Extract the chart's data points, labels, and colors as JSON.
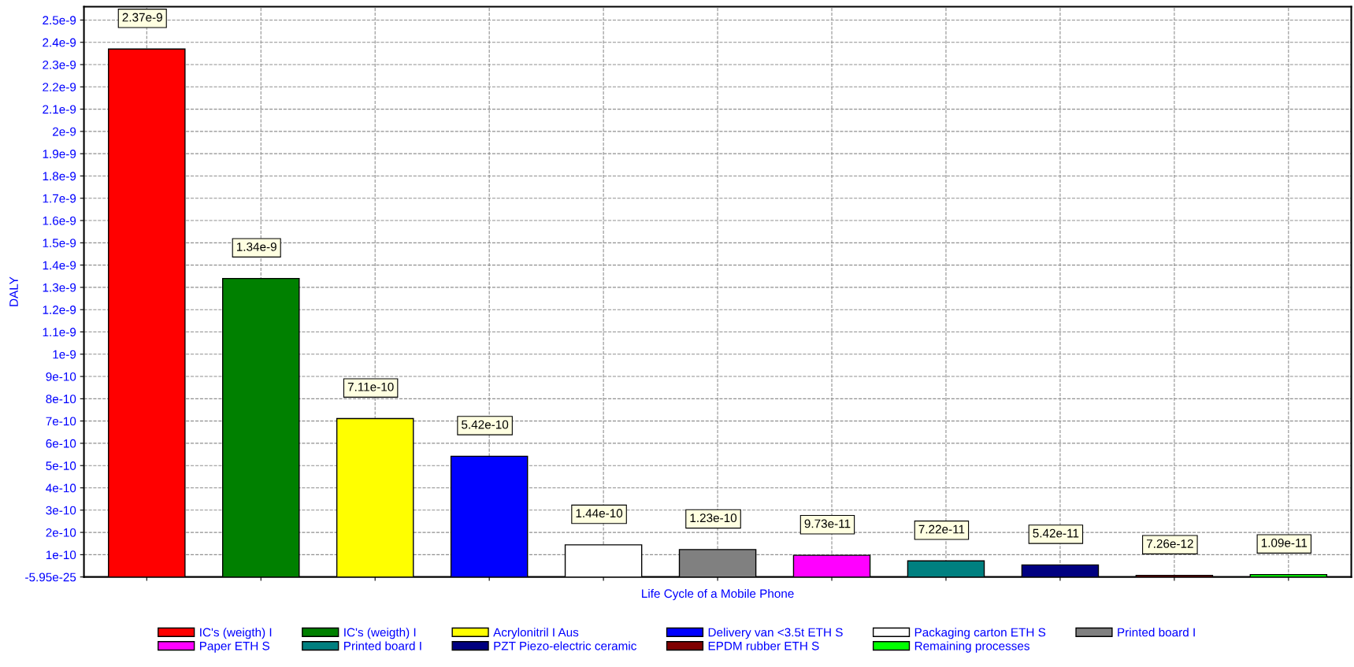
{
  "chart_data": {
    "type": "bar",
    "xlabel": "Life Cycle of a Mobile Phone",
    "ylabel": "DALY",
    "categories": [
      null,
      null,
      null,
      null,
      null,
      null,
      null,
      null,
      null,
      null,
      null
    ],
    "series": [
      {
        "name": "IC's (weigth) I",
        "color": "#ff0000",
        "values": [
          2.37e-09,
          null,
          null,
          null,
          null,
          null,
          null,
          null,
          null,
          null,
          null
        ],
        "value_labels": [
          "2.37e-9",
          null,
          null,
          null,
          null,
          null,
          null,
          null,
          null,
          null,
          null
        ]
      },
      {
        "name": "IC's (weigth) I",
        "color": "#008000",
        "values": [
          null,
          1.34e-09,
          null,
          null,
          null,
          null,
          null,
          null,
          null,
          null,
          null
        ],
        "value_labels": [
          null,
          "1.34e-9",
          null,
          null,
          null,
          null,
          null,
          null,
          null,
          null,
          null
        ]
      },
      {
        "name": "Acrylonitril I Aus",
        "color": "#ffff00",
        "values": [
          null,
          null,
          7.11e-10,
          null,
          null,
          null,
          null,
          null,
          null,
          null,
          null
        ],
        "value_labels": [
          null,
          null,
          "7.11e-10",
          null,
          null,
          null,
          null,
          null,
          null,
          null,
          null
        ]
      },
      {
        "name": "Delivery van <3.5t ETH S",
        "color": "#0000ff",
        "values": [
          null,
          null,
          null,
          5.42e-10,
          null,
          null,
          null,
          null,
          null,
          null,
          null
        ],
        "value_labels": [
          null,
          null,
          null,
          "5.42e-10",
          null,
          null,
          null,
          null,
          null,
          null,
          null
        ]
      },
      {
        "name": "Packaging carton ETH S",
        "color": "#ffffff",
        "values": [
          null,
          null,
          null,
          null,
          1.44e-10,
          null,
          null,
          null,
          null,
          null,
          null
        ],
        "value_labels": [
          null,
          null,
          null,
          null,
          "1.44e-10",
          null,
          null,
          null,
          null,
          null,
          null
        ]
      },
      {
        "name": "Printed board I",
        "color": "#808080",
        "values": [
          null,
          null,
          null,
          null,
          null,
          1.23e-10,
          null,
          null,
          null,
          null,
          null
        ],
        "value_labels": [
          null,
          null,
          null,
          null,
          null,
          "1.23e-10",
          null,
          null,
          null,
          null,
          null
        ]
      },
      {
        "name": "Paper ETH S",
        "color": "#ff00ff",
        "values": [
          null,
          null,
          null,
          null,
          null,
          null,
          9.73e-11,
          null,
          null,
          null,
          null
        ],
        "value_labels": [
          null,
          null,
          null,
          null,
          null,
          null,
          "9.73e-11",
          null,
          null,
          null,
          null
        ]
      },
      {
        "name": "Printed board I",
        "color": "#008080",
        "values": [
          null,
          null,
          null,
          null,
          null,
          null,
          null,
          7.22e-11,
          null,
          null,
          null
        ],
        "value_labels": [
          null,
          null,
          null,
          null,
          null,
          null,
          null,
          "7.22e-11",
          null,
          null,
          null
        ]
      },
      {
        "name": "PZT Piezo-electric ceramic",
        "color": "#000080",
        "values": [
          null,
          null,
          null,
          null,
          null,
          null,
          null,
          null,
          5.42e-11,
          null,
          null
        ],
        "value_labels": [
          null,
          null,
          null,
          null,
          null,
          null,
          null,
          null,
          "5.42e-11",
          null,
          null
        ]
      },
      {
        "name": "EPDM rubber ETH S",
        "color": "#800000",
        "values": [
          null,
          null,
          null,
          null,
          null,
          null,
          null,
          null,
          null,
          7.26e-12,
          null
        ],
        "value_labels": [
          null,
          null,
          null,
          null,
          null,
          null,
          null,
          null,
          null,
          "7.26e-12",
          null
        ]
      },
      {
        "name": "Remaining processes",
        "color": "#00ff00",
        "values": [
          null,
          null,
          null,
          null,
          null,
          null,
          null,
          null,
          null,
          null,
          1.09e-11
        ],
        "value_labels": [
          null,
          null,
          null,
          null,
          null,
          null,
          null,
          null,
          null,
          null,
          "1.09e-11"
        ]
      }
    ],
    "ylim": [
      -5.95e-25,
      2.56e-09
    ],
    "yticks": [
      {
        "value": -5.95e-25,
        "label": "-5.95e-25"
      },
      {
        "value": 1e-10,
        "label": "1e-10"
      },
      {
        "value": 2e-10,
        "label": "2e-10"
      },
      {
        "value": 3e-10,
        "label": "3e-10"
      },
      {
        "value": 4e-10,
        "label": "4e-10"
      },
      {
        "value": 5e-10,
        "label": "5e-10"
      },
      {
        "value": 6e-10,
        "label": "6e-10"
      },
      {
        "value": 7e-10,
        "label": "7e-10"
      },
      {
        "value": 8e-10,
        "label": "8e-10"
      },
      {
        "value": 9e-10,
        "label": "9e-10"
      },
      {
        "value": 1e-09,
        "label": "1e-9"
      },
      {
        "value": 1.1e-09,
        "label": "1.1e-9"
      },
      {
        "value": 1.2e-09,
        "label": "1.2e-9"
      },
      {
        "value": 1.3e-09,
        "label": "1.3e-9"
      },
      {
        "value": 1.4e-09,
        "label": "1.4e-9"
      },
      {
        "value": 1.5e-09,
        "label": "1.5e-9"
      },
      {
        "value": 1.6e-09,
        "label": "1.6e-9"
      },
      {
        "value": 1.7e-09,
        "label": "1.7e-9"
      },
      {
        "value": 1.8e-09,
        "label": "1.8e-9"
      },
      {
        "value": 1.9e-09,
        "label": "1.9e-9"
      },
      {
        "value": 2e-09,
        "label": "2e-9"
      },
      {
        "value": 2.1e-09,
        "label": "2.1e-9"
      },
      {
        "value": 2.2e-09,
        "label": "2.2e-9"
      },
      {
        "value": 2.3e-09,
        "label": "2.3e-9"
      },
      {
        "value": 2.4e-09,
        "label": "2.4e-9"
      },
      {
        "value": 2.5e-09,
        "label": "2.5e-9"
      }
    ],
    "grid": true,
    "legend": "bottom"
  }
}
